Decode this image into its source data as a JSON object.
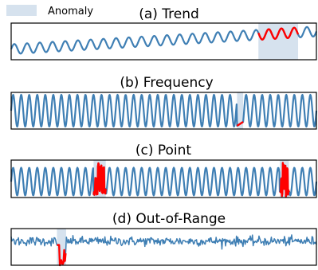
{
  "legend": {
    "label": "Anomaly",
    "color": "#d6e2ee"
  },
  "colors": {
    "series": "#3f7fb4",
    "anomaly": "#ff0000",
    "shade": "#d6e2ee"
  },
  "chart_data": [
    {
      "type": "line",
      "title": "(a) Trend",
      "xlim": [
        0,
        100
      ],
      "ylim": [
        -1.5,
        1.8
      ],
      "signal": {
        "kind": "sine_trend",
        "cycles": 24,
        "amplitude": 0.45,
        "offset_start": -0.55,
        "offset_end": 1.05
      },
      "anomaly_spans": [
        [
          81,
          94
        ]
      ],
      "anomaly_effect": "trend shift"
    },
    {
      "type": "line",
      "title": "(b) Frequency",
      "xlim": [
        0,
        100
      ],
      "ylim": [
        -1.15,
        1.15
      ],
      "signal": {
        "kind": "sine",
        "cycles": 38,
        "amplitude": 1.0
      },
      "anomaly_spans": [
        [
          74,
          76
        ]
      ],
      "anomaly_effect": "frequency change"
    },
    {
      "type": "line",
      "title": "(c) Point",
      "xlim": [
        0,
        100
      ],
      "ylim": [
        -1.15,
        1.55
      ],
      "signal": {
        "kind": "sine",
        "cycles": 38,
        "amplitude": 1.0
      },
      "anomaly_spans": [
        [
          27,
          31
        ],
        [
          88,
          91
        ]
      ],
      "anomaly_effect": "point spikes"
    },
    {
      "type": "line",
      "title": "(d) Out-of-Range",
      "xlim": [
        0,
        100
      ],
      "ylim": [
        -1.9,
        1.0
      ],
      "signal": {
        "kind": "noise",
        "amplitude": 0.18
      },
      "anomaly_spans": [
        [
          15,
          18
        ]
      ],
      "anomaly_effect": "out-of-range dip"
    }
  ]
}
